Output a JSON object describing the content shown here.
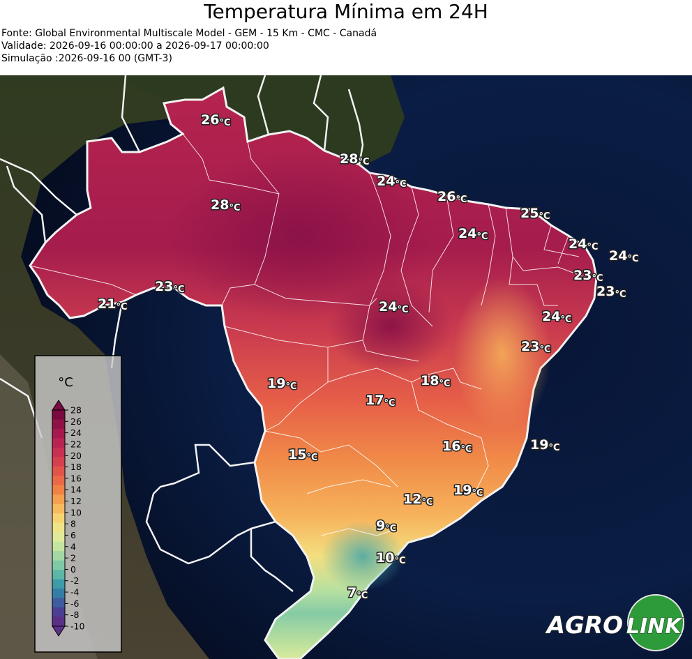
{
  "header": {
    "title": "Temperatura Mínima em 24H",
    "source": "Fonte: Global Environmental Multiscale Model - GEM - 15 Km - CMC - Canadá",
    "validity": "Validade: 2026-09-16 00:00:00 a 2026-09-17 00:00:00",
    "simulation": "Simulação :2026-09-16 00 (GMT-3)"
  },
  "legend": {
    "unit": "°C",
    "ticks": [
      "28",
      "26",
      "24",
      "22",
      "20",
      "18",
      "16",
      "14",
      "12",
      "10",
      "8",
      "6",
      "4",
      "2",
      "0",
      "-2",
      "-4",
      "-6",
      "-8",
      "-10"
    ],
    "colors": [
      "#7a0a3f",
      "#8f1247",
      "#a5194e",
      "#b82352",
      "#c83052",
      "#d63f4e",
      "#e2534a",
      "#ea6a47",
      "#f08246",
      "#f5a050",
      "#f8ba5e",
      "#f7d473",
      "#efe487",
      "#dfeb9a",
      "#c4e5a0",
      "#a2d8a4",
      "#80c9a6",
      "#5eb6a7",
      "#3e9ca8",
      "#347ea6",
      "#3e5c9e",
      "#4a3f92",
      "#5a2f88"
    ]
  },
  "map_labels": [
    {
      "text": "26",
      "unit": "°C"
    },
    {
      "text": "28",
      "unit": "°C"
    },
    {
      "text": "24",
      "unit": "°C"
    },
    {
      "text": "28",
      "unit": "°C"
    },
    {
      "text": "26",
      "unit": "°C"
    },
    {
      "text": "25",
      "unit": "°C"
    },
    {
      "text": "24",
      "unit": "°C"
    },
    {
      "text": "24",
      "unit": "°C"
    },
    {
      "text": "24",
      "unit": "°C"
    },
    {
      "text": "23",
      "unit": "°C"
    },
    {
      "text": "23",
      "unit": "°C"
    },
    {
      "text": "24",
      "unit": "°C"
    },
    {
      "text": "21",
      "unit": "°C"
    },
    {
      "text": "23",
      "unit": "°C"
    },
    {
      "text": "24",
      "unit": "°C"
    },
    {
      "text": "23",
      "unit": "°C"
    },
    {
      "text": "19",
      "unit": "°C"
    },
    {
      "text": "18",
      "unit": "°C"
    },
    {
      "text": "17",
      "unit": "°C"
    },
    {
      "text": "16",
      "unit": "°C"
    },
    {
      "text": "19",
      "unit": "°C"
    },
    {
      "text": "15",
      "unit": "°C"
    },
    {
      "text": "12",
      "unit": "°C"
    },
    {
      "text": "19",
      "unit": "°C"
    },
    {
      "text": "9",
      "unit": "°C"
    },
    {
      "text": "10",
      "unit": "°C"
    },
    {
      "text": "7",
      "unit": "°C"
    }
  ],
  "logo": {
    "part1": "AGRO",
    "part2": "LINK"
  }
}
